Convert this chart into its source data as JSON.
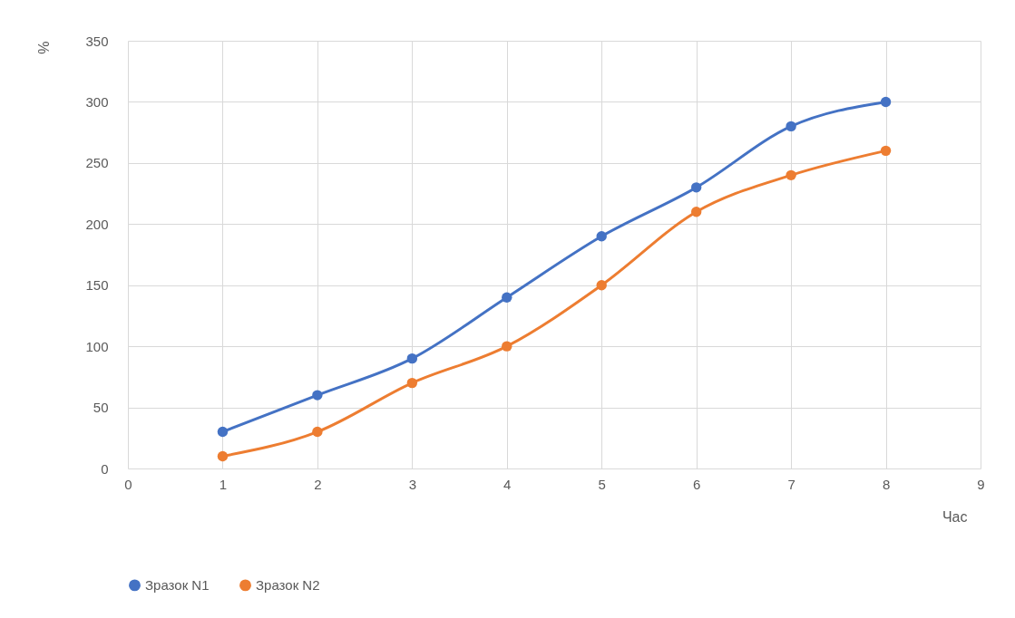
{
  "chart_data": {
    "type": "line",
    "xlabel": "Час",
    "ylabel": "%",
    "x": [
      1,
      2,
      3,
      4,
      5,
      6,
      7,
      8
    ],
    "series": [
      {
        "name": "Зразок N1",
        "color": "#4472c4",
        "values": [
          30,
          60,
          90,
          140,
          190,
          230,
          280,
          300
        ]
      },
      {
        "name": "Зразок N2",
        "color": "#ed7d31",
        "values": [
          10,
          30,
          70,
          100,
          150,
          210,
          240,
          260
        ]
      }
    ],
    "xlim": [
      0,
      9
    ],
    "xticks": [
      0,
      1,
      2,
      3,
      4,
      5,
      6,
      7,
      8,
      9
    ],
    "ylim": [
      0,
      350
    ],
    "yticks": [
      0,
      50,
      100,
      150,
      200,
      250,
      300,
      350
    ],
    "grid": true,
    "legend": "bottom",
    "marker": "circle",
    "line_style": "solid"
  }
}
